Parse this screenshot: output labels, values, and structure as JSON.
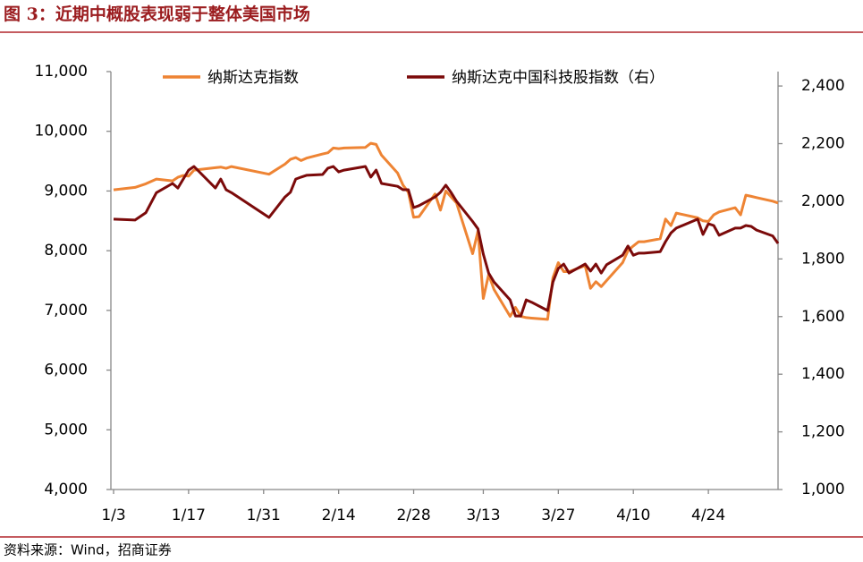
{
  "chart_data": {
    "type": "line",
    "title": "图 3：近期中概股表现弱于整体美国市场",
    "source": "资料来源：Wind，招商证券",
    "x": [
      "1/3",
      "1/7",
      "1/9",
      "1/11",
      "1/14",
      "1/15",
      "1/16",
      "1/17",
      "1/18",
      "1/22",
      "1/23",
      "1/24",
      "1/25",
      "2/1",
      "2/4",
      "2/5",
      "2/6",
      "2/7",
      "2/8",
      "2/11",
      "2/12",
      "2/13",
      "2/14",
      "2/15",
      "2/19",
      "2/20",
      "2/21",
      "2/22",
      "2/25",
      "2/26",
      "2/27",
      "2/28",
      "3/1",
      "3/4",
      "3/5",
      "3/6",
      "3/7",
      "3/8",
      "3/11",
      "3/12",
      "3/13",
      "3/14",
      "3/15",
      "3/18",
      "3/19",
      "3/20",
      "3/21",
      "3/22",
      "3/25",
      "3/26",
      "3/27",
      "3/28",
      "3/29",
      "4/1",
      "4/2",
      "4/3",
      "4/4",
      "4/5",
      "4/8",
      "4/9",
      "4/10",
      "4/11",
      "4/12",
      "4/15",
      "4/16",
      "4/17",
      "4/18",
      "4/22",
      "4/23",
      "4/24",
      "4/25",
      "4/26",
      "4/29",
      "4/30",
      "5/1",
      "5/2",
      "5/3",
      "5/6",
      "5/7"
    ],
    "xlim": [
      "1/3",
      "5/7"
    ],
    "xticks": [
      "1/3",
      "1/17",
      "1/31",
      "2/14",
      "2/28",
      "3/13",
      "3/27",
      "4/10",
      "4/24"
    ],
    "ylim": [
      4000,
      11000
    ],
    "yticks": [
      {
        "value": 4000,
        "label": "4,000"
      },
      {
        "value": 5000,
        "label": "5,000"
      },
      {
        "value": 6000,
        "label": "6,000"
      },
      {
        "value": 7000,
        "label": "7,000"
      },
      {
        "value": 8000,
        "label": "8,000"
      },
      {
        "value": 9000,
        "label": "9,000"
      },
      {
        "value": 10000,
        "label": "10,000"
      },
      {
        "value": 11000,
        "label": "11,000"
      }
    ],
    "y2lim": [
      1000,
      2450
    ],
    "y2ticks": [
      {
        "value": 1000,
        "label": "1,000"
      },
      {
        "value": 1200,
        "label": "1,200"
      },
      {
        "value": 1400,
        "label": "1,400"
      },
      {
        "value": 1600,
        "label": "1,600"
      },
      {
        "value": 1800,
        "label": "1,800"
      },
      {
        "value": 2000,
        "label": "2,000"
      },
      {
        "value": 2200,
        "label": "2,200"
      },
      {
        "value": 2400,
        "label": "2,400"
      }
    ],
    "grid": false,
    "series": [
      {
        "name": "纳斯达克指数",
        "color": "#ee8434",
        "values": [
          9020,
          9060,
          9120,
          9200,
          9170,
          9230,
          9260,
          9250,
          9350,
          9390,
          9400,
          9380,
          9410,
          9280,
          9450,
          9530,
          9560,
          9510,
          9550,
          9620,
          9640,
          9720,
          9710,
          9720,
          9730,
          9800,
          9780,
          9600,
          9300,
          9100,
          8980,
          8560,
          8570,
          8950,
          8680,
          9000,
          8900,
          8800,
          7950,
          8330,
          7200,
          7600,
          7350,
          6900,
          7050,
          6900,
          6880,
          6870,
          6850,
          7550,
          7800,
          7650,
          7650,
          7750,
          7370,
          7480,
          7400,
          7500,
          7800,
          8000,
          8080,
          8150,
          8150,
          8200,
          8530,
          8420,
          8630,
          8550,
          8500,
          8490,
          8600,
          8650,
          8720,
          8600,
          8930,
          8910,
          8890,
          8830,
          8800
        ]
      },
      {
        "name": "纳斯达克中国科技股指数（右）",
        "color": "#7b0a0a",
        "axis": "y2",
        "values": [
          1938,
          1935,
          1960,
          2030,
          2062,
          2046,
          2077,
          2108,
          2121,
          2046,
          2077,
          2040,
          2030,
          1944,
          2015,
          2031,
          2077,
          2084,
          2090,
          2093,
          2115,
          2121,
          2102,
          2108,
          2121,
          2084,
          2108,
          2062,
          2052,
          2040,
          2040,
          1978,
          1985,
          2015,
          2031,
          2056,
          2030,
          2000,
          1930,
          1904,
          1817,
          1751,
          1720,
          1658,
          1602,
          1602,
          1658,
          1650,
          1621,
          1720,
          1767,
          1782,
          1751,
          1782,
          1758,
          1782,
          1751,
          1780,
          1813,
          1845,
          1813,
          1820,
          1820,
          1825,
          1860,
          1890,
          1907,
          1938,
          1885,
          1922,
          1916,
          1882,
          1907,
          1907,
          1916,
          1913,
          1900,
          1880,
          1854
        ]
      }
    ]
  }
}
